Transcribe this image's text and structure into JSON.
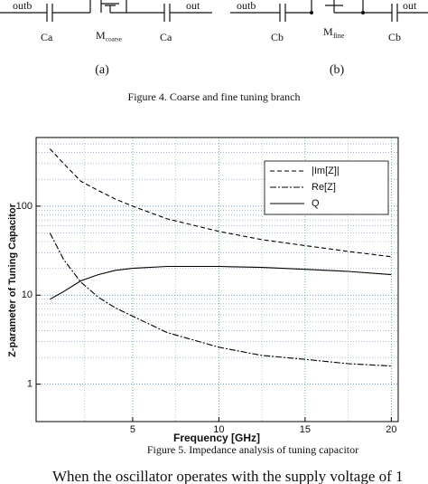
{
  "figure4": {
    "panels": [
      {
        "left_port": "outb",
        "left_cap": "Ca",
        "transistor": "M",
        "subscript": "coarse",
        "right_cap": "Ca",
        "right_port": "out",
        "label": "(a)"
      },
      {
        "left_port": "outb",
        "left_cap": "Cb",
        "transistor": "M",
        "subscript": "fine",
        "right_cap": "Cb",
        "right_port": "out",
        "label": "(b)"
      }
    ],
    "caption": "Figure 4. Coarse and fine tuning branch"
  },
  "chart_data": {
    "type": "line",
    "x_label": "Frequency [GHz]",
    "y_label": "Z-parameter of Tuning Capacitor",
    "x": [
      0.2,
      1,
      2,
      3,
      4,
      5,
      7,
      10,
      12.5,
      15,
      17.5,
      20
    ],
    "series": [
      {
        "name": "|Im[Z]|",
        "color": "#000000",
        "dash": "dashed",
        "values": [
          440,
          300,
          190,
          150,
          120,
          100,
          72,
          52,
          42,
          36,
          31,
          27
        ]
      },
      {
        "name": "Re[Z]",
        "color": "#000000",
        "dash": "dashdot",
        "values": [
          50,
          25,
          14,
          9.5,
          7.2,
          5.8,
          3.8,
          2.6,
          2.1,
          1.9,
          1.7,
          1.6
        ]
      },
      {
        "name": "Q",
        "color": "#000000",
        "dash": "solid",
        "values": [
          9,
          11,
          14.5,
          17,
          19,
          20,
          21,
          21,
          20.5,
          19.5,
          18.5,
          17
        ]
      }
    ],
    "xlim": [
      -0.6,
      20.4
    ],
    "ylim": [
      0.38,
      590
    ],
    "xticks": [
      5,
      10,
      15,
      20
    ],
    "yticks": [
      1,
      10,
      100
    ],
    "log_y": true,
    "grid": true,
    "legend": "top-right"
  },
  "figure5_caption": "Figure 5. Impedance analysis of tuning capacitor",
  "body_text": "When the oscillator operates with the supply voltage of 1"
}
